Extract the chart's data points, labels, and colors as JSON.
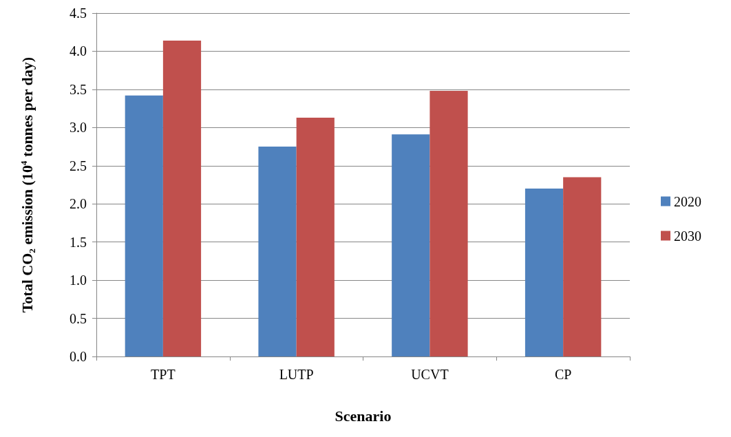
{
  "chart_data": {
    "type": "bar",
    "xlabel": "Scenario",
    "ylabel": "Total CO₂ emission (10$^{4}$ tonnes per day)",
    "categories": [
      "TPT",
      "LUTP",
      "UCVT",
      "CP"
    ],
    "series": [
      {
        "name": "2020",
        "color": "#4f81bd",
        "values": [
          3.42,
          2.75,
          2.91,
          2.2
        ]
      },
      {
        "name": "2030",
        "color": "#c0504d",
        "values": [
          4.14,
          3.13,
          3.48,
          2.35
        ]
      }
    ],
    "ylim": [
      0,
      4.5
    ],
    "yticks": [
      {
        "value": 0,
        "label": "0.0"
      },
      0.5,
      {
        "value": 1,
        "label": "1.0"
      },
      1.5,
      {
        "value": 2,
        "label": "2.0"
      },
      2.5,
      {
        "value": 3,
        "label": "3.0"
      },
      3.5,
      {
        "value": 4,
        "label": "4.0"
      },
      4.5
    ],
    "grid": "y",
    "legend": "right"
  }
}
